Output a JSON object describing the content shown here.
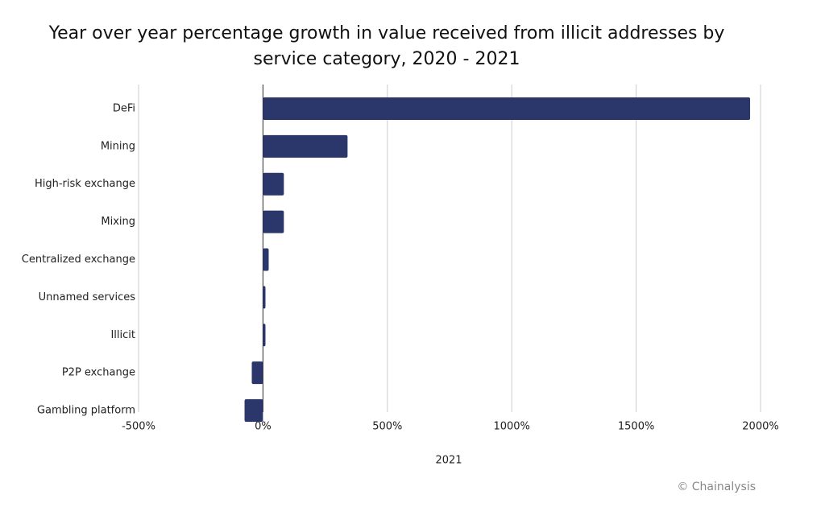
{
  "chart_data": {
    "type": "barh",
    "title": "Year over year percentage growth in value received from illicit addresses by service category, 2020 - 2021",
    "categories": [
      "DeFi",
      "Mining",
      "High-risk exchange",
      "Mixing",
      "Centralized exchange",
      "Unnamed services",
      "Illicit",
      "P2P exchange",
      "Gambling platform"
    ],
    "values": [
      1958,
      340,
      84,
      84,
      23,
      10,
      10,
      -45,
      -74
    ],
    "color": "#2b376b",
    "xlim": [
      -500,
      2000
    ],
    "xticks": [
      {
        "value": -500,
        "label": "-500%"
      },
      {
        "value": 0,
        "label": "0%"
      },
      {
        "value": 500,
        "label": "500%"
      },
      {
        "value": 1000,
        "label": "1000%"
      },
      {
        "value": 1500,
        "label": "1500%"
      },
      {
        "value": 2000,
        "label": "2000%"
      }
    ],
    "grid": true,
    "x_label": "2021",
    "source": "© Chainalysis"
  }
}
